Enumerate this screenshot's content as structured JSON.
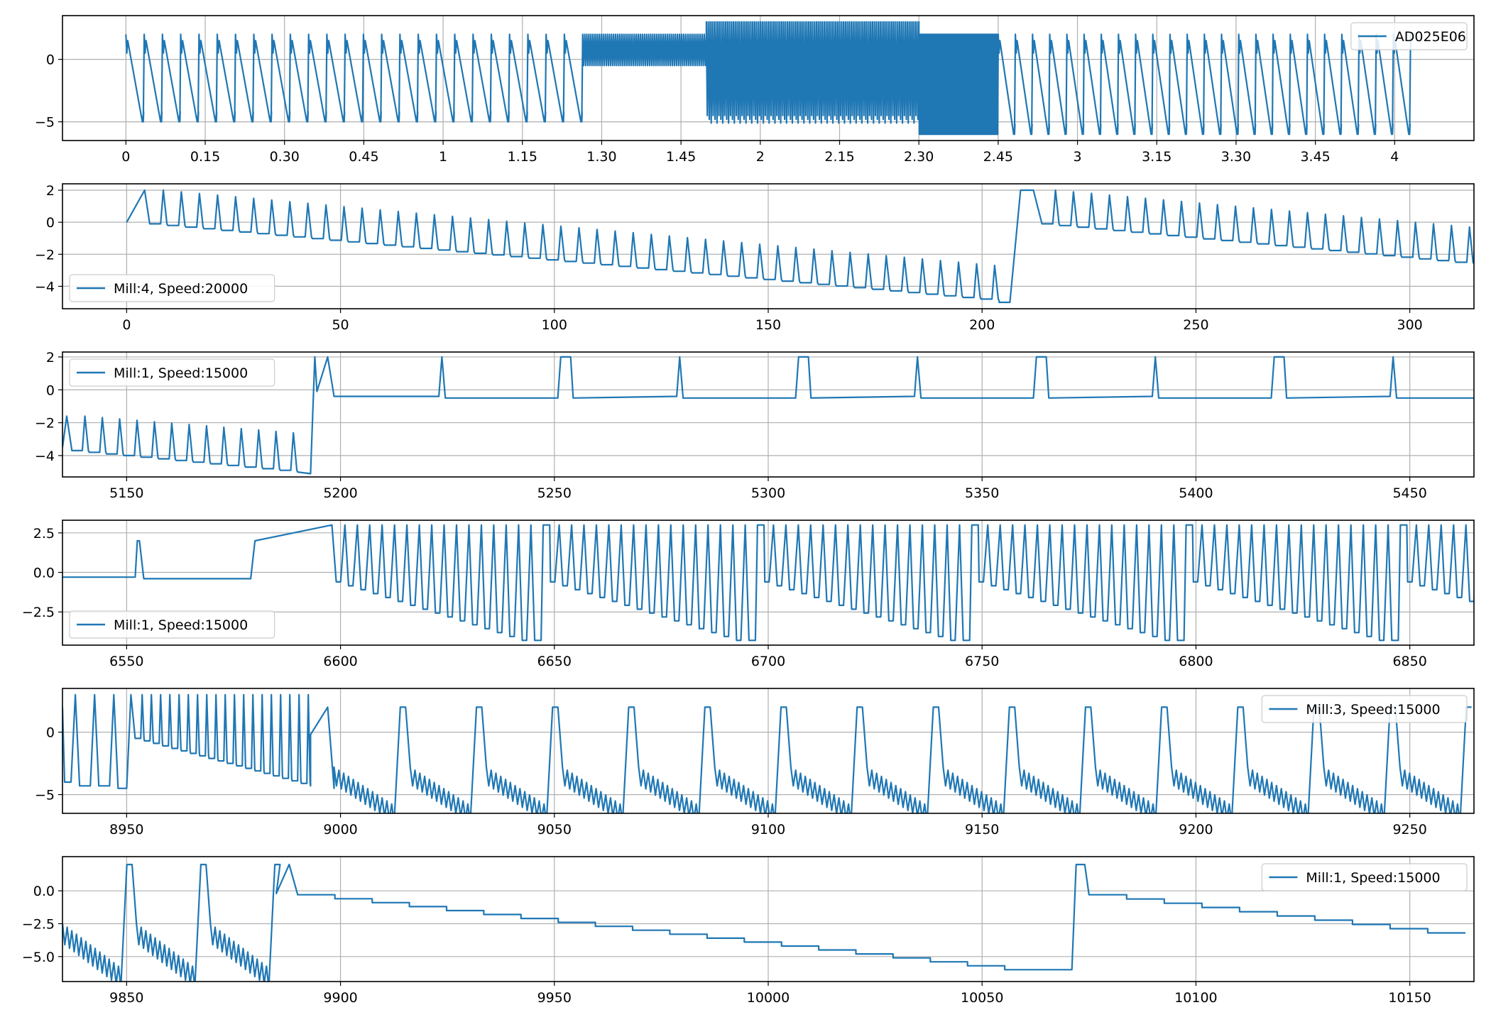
{
  "figure": {
    "line_color": "#1f77b4",
    "background": "#ffffff",
    "grid_color": "#b0b0b0"
  },
  "chart_data": [
    {
      "type": "line",
      "legend": "AD025E06",
      "legend_position": "upper right",
      "grid": true,
      "xlim": [
        -0.2,
        4.25
      ],
      "ylim": [
        -6.5,
        3.5
      ],
      "x_ticks": [
        {
          "value": 0,
          "label": "0"
        },
        {
          "value": 0.25,
          "label": "0.15"
        },
        {
          "value": 0.5,
          "label": "0.30"
        },
        {
          "value": 0.75,
          "label": "0.45"
        },
        {
          "value": 1.0,
          "label": "1"
        },
        {
          "value": 1.25,
          "label": "1.15"
        },
        {
          "value": 1.5,
          "label": "1.30"
        },
        {
          "value": 1.75,
          "label": "1.45"
        },
        {
          "value": 2.0,
          "label": "2"
        },
        {
          "value": 2.25,
          "label": "2.15"
        },
        {
          "value": 2.5,
          "label": "2.30"
        },
        {
          "value": 2.75,
          "label": "2.45"
        },
        {
          "value": 3.0,
          "label": "3"
        },
        {
          "value": 3.25,
          "label": "3.15"
        },
        {
          "value": 3.5,
          "label": "3.30"
        },
        {
          "value": 3.75,
          "label": "3.45"
        },
        {
          "value": 4.0,
          "label": "4"
        }
      ],
      "y_ticks": [
        {
          "value": 0,
          "label": "0"
        },
        {
          "value": -5,
          "label": "−5"
        }
      ],
      "segments": [
        {
          "kind": "saw",
          "x0": 0.0,
          "x1": 1.44,
          "count": 25,
          "high": 2.0,
          "low": -5.0,
          "jitter": 0.02
        },
        {
          "kind": "band",
          "x0": 1.44,
          "x1": 1.83,
          "count": 60,
          "high": 2.0,
          "low": -0.5
        },
        {
          "kind": "band",
          "x0": 1.83,
          "x1": 2.5,
          "count": 110,
          "high": 3.0,
          "low": -4.5,
          "lowvar": 0.6
        },
        {
          "kind": "band",
          "x0": 2.5,
          "x1": 2.75,
          "count": 80,
          "high": 2.0,
          "low": -6.0
        },
        {
          "kind": "saw",
          "x0": 2.75,
          "x1": 4.05,
          "count": 24,
          "high": 2.0,
          "low": -6.0,
          "jitter": 0.02
        }
      ]
    },
    {
      "type": "line",
      "legend": "Mill:4, Speed:20000",
      "legend_position": "lower left",
      "grid": true,
      "xlim": [
        -15,
        315
      ],
      "ylim": [
        -5.4,
        2.4
      ],
      "x_ticks": [
        {
          "value": 0,
          "label": "0"
        },
        {
          "value": 50,
          "label": "50"
        },
        {
          "value": 100,
          "label": "100"
        },
        {
          "value": 150,
          "label": "150"
        },
        {
          "value": 200,
          "label": "200"
        },
        {
          "value": 250,
          "label": "250"
        },
        {
          "value": 300,
          "label": "300"
        }
      ],
      "y_ticks": [
        {
          "value": 2,
          "label": "2"
        },
        {
          "value": 0,
          "label": "0"
        },
        {
          "value": -2,
          "label": "−2"
        },
        {
          "value": -4,
          "label": "−4"
        }
      ],
      "segments": [
        {
          "kind": "points",
          "points": [
            [
              0,
              0
            ],
            [
              4.2,
              2.0
            ],
            [
              5.4,
              -0.1
            ]
          ]
        },
        {
          "kind": "spikes",
          "x0": 5.4,
          "x1": 204,
          "period": 4.2,
          "base_start": -0.1,
          "base_end": -4.9,
          "peak_start": 2.0,
          "peak_end": -2.8
        },
        {
          "kind": "points",
          "points": [
            [
              204,
              -5.0
            ],
            [
              206.5,
              -5.0
            ],
            [
              209,
              2.0
            ],
            [
              212,
              2.0
            ],
            [
              214,
              -0.1
            ]
          ]
        },
        {
          "kind": "spikes",
          "x0": 214,
          "x1": 315,
          "period": 4.2,
          "base_start": -0.1,
          "base_end": -2.6,
          "peak_start": 2.0,
          "peak_end": -0.4
        }
      ]
    },
    {
      "type": "line",
      "legend": "Mill:1, Speed:15000",
      "legend_position": "upper left",
      "grid": true,
      "xlim": [
        5135,
        5465
      ],
      "ylim": [
        -5.3,
        2.3
      ],
      "x_ticks": [
        {
          "value": 5150,
          "label": "5150"
        },
        {
          "value": 5200,
          "label": "5200"
        },
        {
          "value": 5250,
          "label": "5250"
        },
        {
          "value": 5300,
          "label": "5300"
        },
        {
          "value": 5350,
          "label": "5350"
        },
        {
          "value": 5400,
          "label": "5400"
        },
        {
          "value": 5450,
          "label": "5450"
        }
      ],
      "y_ticks": [
        {
          "value": 2,
          "label": "2"
        },
        {
          "value": 0,
          "label": "0"
        },
        {
          "value": -2,
          "label": "−2"
        },
        {
          "value": -4,
          "label": "−4"
        }
      ],
      "segments": [
        {
          "kind": "points",
          "points": [
            [
              5135,
              -3.5
            ],
            [
              5136,
              -1.6
            ],
            [
              5137.2,
              -3.7
            ]
          ]
        },
        {
          "kind": "spikes",
          "x0": 5137.2,
          "x1": 5190,
          "period": 4.1,
          "base_start": -3.7,
          "base_end": -5.0,
          "peak_start": -1.6,
          "peak_end": -2.7
        },
        {
          "kind": "points",
          "points": [
            [
              5190,
              -5.0
            ],
            [
              5193,
              -5.1
            ],
            [
              5194,
              2.0
            ],
            [
              5194.5,
              -0.1
            ],
            [
              5197,
              2.0
            ],
            [
              5198.5,
              -0.4
            ]
          ]
        },
        {
          "kind": "plateau_spikes",
          "x0": 5198.5,
          "x1": 5465,
          "period": 27.8,
          "first": 24.5,
          "base": -0.4,
          "peak": 2.0,
          "drop": -0.5
        }
      ]
    },
    {
      "type": "line",
      "legend": "Mill:1, Speed:15000",
      "legend_position": "lower left",
      "grid": true,
      "xlim": [
        6535,
        6865
      ],
      "ylim": [
        -4.6,
        3.3
      ],
      "x_ticks": [
        {
          "value": 6550,
          "label": "6550"
        },
        {
          "value": 6600,
          "label": "6600"
        },
        {
          "value": 6650,
          "label": "6650"
        },
        {
          "value": 6700,
          "label": "6700"
        },
        {
          "value": 6750,
          "label": "6750"
        },
        {
          "value": 6800,
          "label": "6800"
        },
        {
          "value": 6850,
          "label": "6850"
        }
      ],
      "y_ticks": [
        {
          "value": 2.5,
          "label": "2.5"
        },
        {
          "value": 0,
          "label": "0.0"
        },
        {
          "value": -2.5,
          "label": "−2.5"
        }
      ],
      "segments": [
        {
          "kind": "points",
          "points": [
            [
              6535,
              -0.3
            ],
            [
              6552,
              -0.3
            ],
            [
              6552.5,
              2.0
            ],
            [
              6553,
              2.0
            ],
            [
              6554,
              -0.4
            ],
            [
              6579,
              -0.4
            ],
            [
              6580,
              2.0
            ],
            [
              6598,
              3.0
            ],
            [
              6599,
              -0.6
            ]
          ]
        },
        {
          "kind": "cycles",
          "x0": 6599,
          "x1": 6865,
          "period": 48.5,
          "step": 2.9,
          "base_start": -0.6,
          "base_end": -4.3,
          "peak": 3.0,
          "flat": 3.0
        }
      ]
    },
    {
      "type": "line",
      "legend": "Mill:3, Speed:15000",
      "legend_position": "upper right",
      "grid": true,
      "xlim": [
        8935,
        9265
      ],
      "ylim": [
        -6.5,
        3.5
      ],
      "x_ticks": [
        {
          "value": 8950,
          "label": "8950"
        },
        {
          "value": 9000,
          "label": "9000"
        },
        {
          "value": 9050,
          "label": "9050"
        },
        {
          "value": 9100,
          "label": "9100"
        },
        {
          "value": 9150,
          "label": "9150"
        },
        {
          "value": 9200,
          "label": "9200"
        },
        {
          "value": 9250,
          "label": "9250"
        }
      ],
      "y_ticks": [
        {
          "value": 0,
          "label": "0"
        },
        {
          "value": -5,
          "label": "−5"
        }
      ],
      "segments": [
        {
          "kind": "points",
          "points": [
            [
              8935,
              2.0
            ],
            [
              8935.5,
              -4.0
            ],
            [
              8937,
              -4.0
            ],
            [
              8938,
              3.0
            ],
            [
              8939,
              -4.3
            ],
            [
              8941.5,
              -4.3
            ],
            [
              8942.5,
              3.0
            ],
            [
              8943.5,
              -4.3
            ],
            [
              8946,
              -4.3
            ],
            [
              8947,
              3.0
            ],
            [
              8948,
              -4.5
            ],
            [
              8950,
              -4.5
            ],
            [
              8951,
              3.0
            ],
            [
              8952,
              -0.5
            ]
          ]
        },
        {
          "kind": "spikes",
          "x0": 8952,
          "x1": 8993,
          "period": 2.2,
          "base_start": -0.5,
          "base_end": -4.3,
          "peak_start": 3.0,
          "peak_end": 3.0
        },
        {
          "kind": "points",
          "points": [
            [
              8993,
              -0.2
            ],
            [
              8997,
              2.0
            ],
            [
              8998.5,
              -4.5
            ]
          ]
        },
        {
          "kind": "dense_cycles",
          "x0": 8998.5,
          "x1": 9265,
          "period": 17.8,
          "teeth": 13,
          "band_start": -2.8,
          "band_end": -6.0,
          "depth": 1.5,
          "peak": 2.0
        }
      ]
    },
    {
      "type": "line",
      "legend": "Mill:1, Speed:15000",
      "legend_position": "upper right",
      "grid": true,
      "xlim": [
        9835,
        10165
      ],
      "ylim": [
        -6.9,
        2.6
      ],
      "x_ticks": [
        {
          "value": 9850,
          "label": "9850"
        },
        {
          "value": 9900,
          "label": "9900"
        },
        {
          "value": 9950,
          "label": "9950"
        },
        {
          "value": 10000,
          "label": "10000"
        },
        {
          "value": 10050,
          "label": "10050"
        },
        {
          "value": 10100,
          "label": "10100"
        },
        {
          "value": 10150,
          "label": "10150"
        }
      ],
      "y_ticks": [
        {
          "value": 0,
          "label": "0.0"
        },
        {
          "value": -2.5,
          "label": "−2.5"
        },
        {
          "value": -5,
          "label": "−5.0"
        }
      ],
      "segments": [
        {
          "kind": "dense_cycles",
          "x0": 9835,
          "x1": 9885,
          "period": 17.3,
          "teeth": 13,
          "band_start": -2.5,
          "band_end": -6.0,
          "depth": 1.6,
          "peak": 2.0
        },
        {
          "kind": "points",
          "points": [
            [
              9885,
              -0.2
            ],
            [
              9888,
              2.0
            ],
            [
              9890,
              -0.3
            ]
          ]
        },
        {
          "kind": "steps",
          "x0": 9890,
          "x1": 10062,
          "step": 8.7,
          "start": -0.3,
          "end": -6.0
        },
        {
          "kind": "points",
          "points": [
            [
              10071,
              -6.0
            ],
            [
              10072,
              2.0
            ],
            [
              10074,
              2.0
            ],
            [
              10075,
              -0.3
            ]
          ]
        },
        {
          "kind": "steps",
          "x0": 10075,
          "x1": 10165,
          "step": 8.8,
          "start": -0.3,
          "end": -3.2
        }
      ]
    }
  ]
}
